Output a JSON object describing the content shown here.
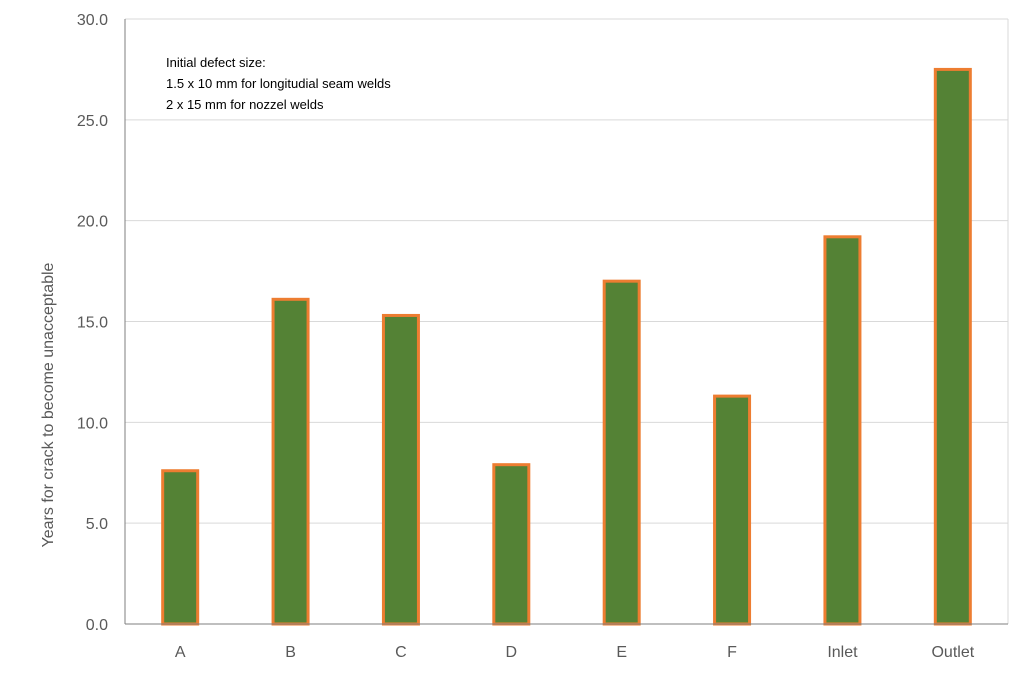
{
  "chart_data": {
    "type": "bar",
    "categories": [
      "A",
      "B",
      "C",
      "D",
      "E",
      "F",
      "Inlet",
      "Outlet"
    ],
    "values": [
      7.6,
      16.1,
      15.3,
      7.9,
      17.0,
      11.3,
      19.2,
      27.5
    ],
    "ylabel": "Years for crack to become unacceptable",
    "xlabel": "",
    "ylim": [
      0,
      30
    ],
    "yticks": [
      "0.0",
      "5.0",
      "10.0",
      "15.0",
      "20.0",
      "25.0",
      "30.0"
    ],
    "grid": true,
    "annotation": [
      "Initial defect size:",
      "1.5 x 10 mm for longitudial seam welds",
      "2 x 15 mm for nozzel welds"
    ],
    "colors": {
      "bar_fill": "#548235",
      "bar_outline": "#ED7D31",
      "gridline": "#D9D9D9",
      "axis": "#7F7F7F"
    }
  }
}
